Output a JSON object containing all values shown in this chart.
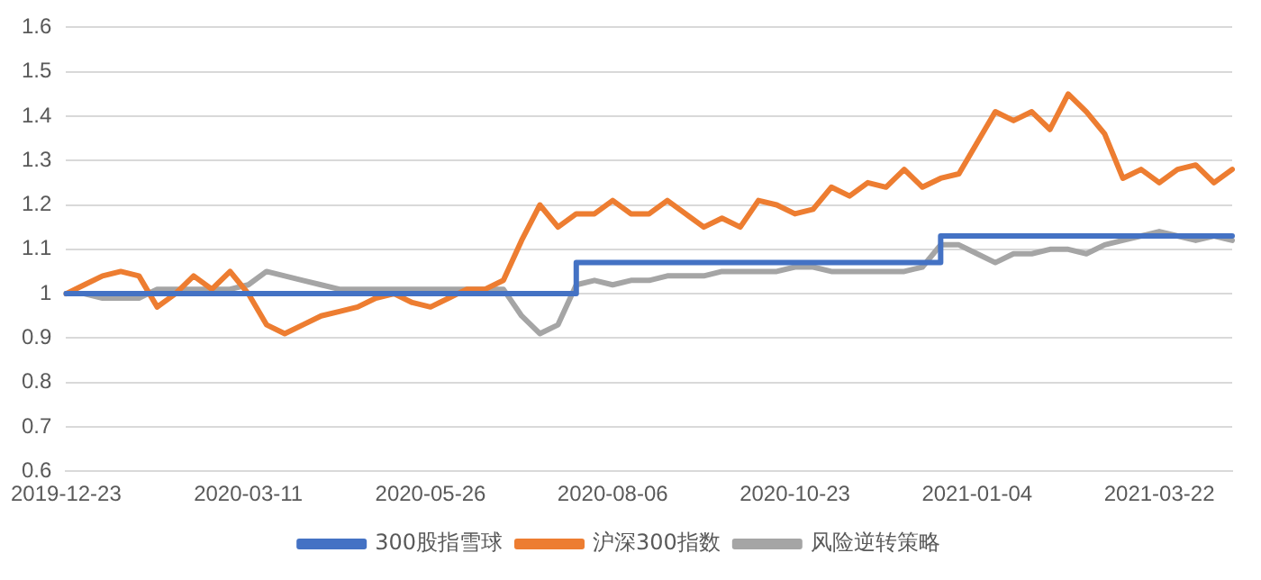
{
  "chart_data": {
    "type": "line",
    "categories": [
      "2019-12-23",
      null,
      null,
      null,
      null,
      null,
      null,
      null,
      null,
      null,
      "2020-03-11",
      null,
      null,
      null,
      null,
      null,
      null,
      null,
      null,
      null,
      "2020-05-26",
      null,
      null,
      null,
      null,
      null,
      null,
      null,
      null,
      null,
      "2020-08-06",
      null,
      null,
      null,
      null,
      null,
      null,
      null,
      null,
      null,
      "2020-10-23",
      null,
      null,
      null,
      null,
      null,
      null,
      null,
      null,
      null,
      "2021-01-04",
      null,
      null,
      null,
      null,
      null,
      null,
      null,
      null,
      null,
      "2021-03-22",
      null,
      null,
      null,
      null
    ],
    "series": [
      {
        "name": "300股指雪球",
        "type": "step",
        "color": "#4472c4",
        "values": [
          1.0,
          1.0,
          1.0,
          1.0,
          1.0,
          1.0,
          1.0,
          1.0,
          1.0,
          1.0,
          1.0,
          1.0,
          1.0,
          1.0,
          1.0,
          1.0,
          1.0,
          1.0,
          1.0,
          1.0,
          1.0,
          1.0,
          1.0,
          1.0,
          1.0,
          1.0,
          1.0,
          1.0,
          1.07,
          1.07,
          1.07,
          1.07,
          1.07,
          1.07,
          1.07,
          1.07,
          1.07,
          1.07,
          1.07,
          1.07,
          1.07,
          1.07,
          1.07,
          1.07,
          1.07,
          1.07,
          1.07,
          1.07,
          1.13,
          1.13,
          1.13,
          1.13,
          1.13,
          1.13,
          1.13,
          1.13,
          1.13,
          1.13,
          1.13,
          1.13,
          1.13,
          1.13,
          1.13,
          1.13,
          1.13
        ]
      },
      {
        "name": "沪深300指数",
        "color": "#ed7d31",
        "values": [
          1.0,
          1.02,
          1.04,
          1.05,
          1.04,
          0.97,
          1.0,
          1.04,
          1.01,
          1.05,
          1.0,
          0.93,
          0.91,
          0.93,
          0.95,
          0.96,
          0.97,
          0.99,
          1.0,
          0.98,
          0.97,
          0.99,
          1.01,
          1.01,
          1.03,
          1.12,
          1.2,
          1.15,
          1.18,
          1.18,
          1.21,
          1.18,
          1.18,
          1.21,
          1.18,
          1.15,
          1.17,
          1.15,
          1.21,
          1.2,
          1.18,
          1.19,
          1.24,
          1.22,
          1.25,
          1.24,
          1.28,
          1.24,
          1.26,
          1.27,
          1.34,
          1.41,
          1.39,
          1.41,
          1.37,
          1.45,
          1.41,
          1.36,
          1.26,
          1.28,
          1.25,
          1.28,
          1.29,
          1.25,
          1.28
        ]
      },
      {
        "name": "风险逆转策略",
        "color": "#a5a5a5",
        "values": [
          1.0,
          1.0,
          0.99,
          0.99,
          0.99,
          1.01,
          1.01,
          1.01,
          1.01,
          1.01,
          1.02,
          1.05,
          1.04,
          1.03,
          1.02,
          1.01,
          1.01,
          1.01,
          1.01,
          1.01,
          1.01,
          1.01,
          1.01,
          1.01,
          1.01,
          0.95,
          0.91,
          0.93,
          1.02,
          1.03,
          1.02,
          1.03,
          1.03,
          1.04,
          1.04,
          1.04,
          1.05,
          1.05,
          1.05,
          1.05,
          1.06,
          1.06,
          1.05,
          1.05,
          1.05,
          1.05,
          1.05,
          1.06,
          1.11,
          1.11,
          1.09,
          1.07,
          1.09,
          1.09,
          1.1,
          1.1,
          1.09,
          1.11,
          1.12,
          1.13,
          1.14,
          1.13,
          1.12,
          1.13,
          1.12
        ]
      }
    ],
    "ylim": [
      0.6,
      1.6
    ],
    "yticks": [
      0.6,
      0.7,
      0.8,
      0.9,
      1,
      1.1,
      1.2,
      1.3,
      1.4,
      1.5,
      1.6
    ],
    "grid": "y",
    "legend": "bottom",
    "marker": "none",
    "line_style": "solid"
  }
}
